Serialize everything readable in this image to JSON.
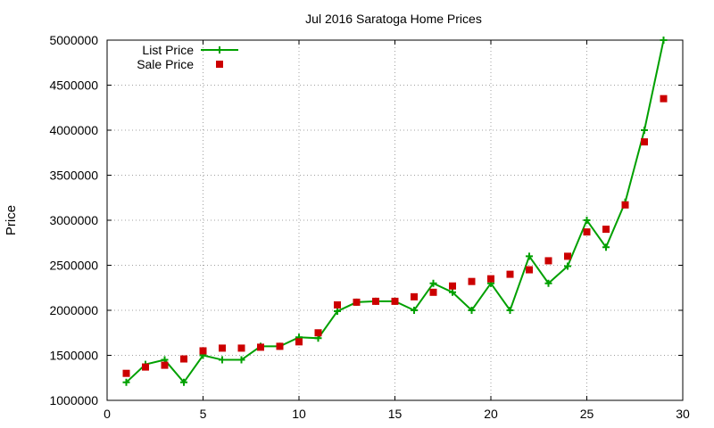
{
  "chart_data": {
    "type": "line",
    "title": "Jul 2016 Saratoga Home Prices",
    "xlabel": "",
    "ylabel": "Price",
    "xlim": [
      0,
      30
    ],
    "ylim": [
      1000000,
      5000000
    ],
    "xticks": [
      0,
      5,
      10,
      15,
      20,
      25,
      30
    ],
    "yticks": [
      1000000,
      1500000,
      2000000,
      2500000,
      3000000,
      3500000,
      4000000,
      4500000,
      5000000
    ],
    "xtick_labels": [
      "0",
      "5",
      "10",
      "15",
      "20",
      "25",
      "30"
    ],
    "ytick_labels": [
      "1000000",
      "1500000",
      "2000000",
      "2500000",
      "3000000",
      "3500000",
      "4000000",
      "4500000",
      "5000000"
    ],
    "grid": true,
    "legend_position": "top-left",
    "series": [
      {
        "name": "List Price",
        "style": "line-plus",
        "color": "#00a000",
        "x": [
          1,
          2,
          3,
          4,
          5,
          6,
          7,
          8,
          9,
          10,
          11,
          12,
          13,
          14,
          15,
          16,
          17,
          18,
          19,
          20,
          21,
          22,
          23,
          24,
          25,
          26,
          27,
          28,
          29
        ],
        "values": [
          1200000,
          1400000,
          1450000,
          1200000,
          1500000,
          1450000,
          1450000,
          1600000,
          1600000,
          1700000,
          1690000,
          1990000,
          2090000,
          2100000,
          2100000,
          2000000,
          2300000,
          2200000,
          2000000,
          2300000,
          2000000,
          2600000,
          2300000,
          2490000,
          3000000,
          2700000,
          3200000,
          4000000,
          5000000
        ]
      },
      {
        "name": "Sale Price",
        "style": "square",
        "color": "#cc0000",
        "x": [
          1,
          2,
          3,
          4,
          5,
          6,
          7,
          8,
          9,
          10,
          11,
          12,
          13,
          14,
          15,
          16,
          17,
          18,
          19,
          20,
          21,
          22,
          23,
          24,
          25,
          26,
          27,
          28,
          29
        ],
        "values": [
          1300000,
          1370000,
          1390000,
          1460000,
          1550000,
          1580000,
          1580000,
          1590000,
          1600000,
          1650000,
          1750000,
          2060000,
          2090000,
          2100000,
          2100000,
          2150000,
          2200000,
          2270000,
          2320000,
          2350000,
          2400000,
          2450000,
          2550000,
          2600000,
          2870000,
          2900000,
          3170000,
          3870000,
          4350000
        ]
      }
    ]
  }
}
